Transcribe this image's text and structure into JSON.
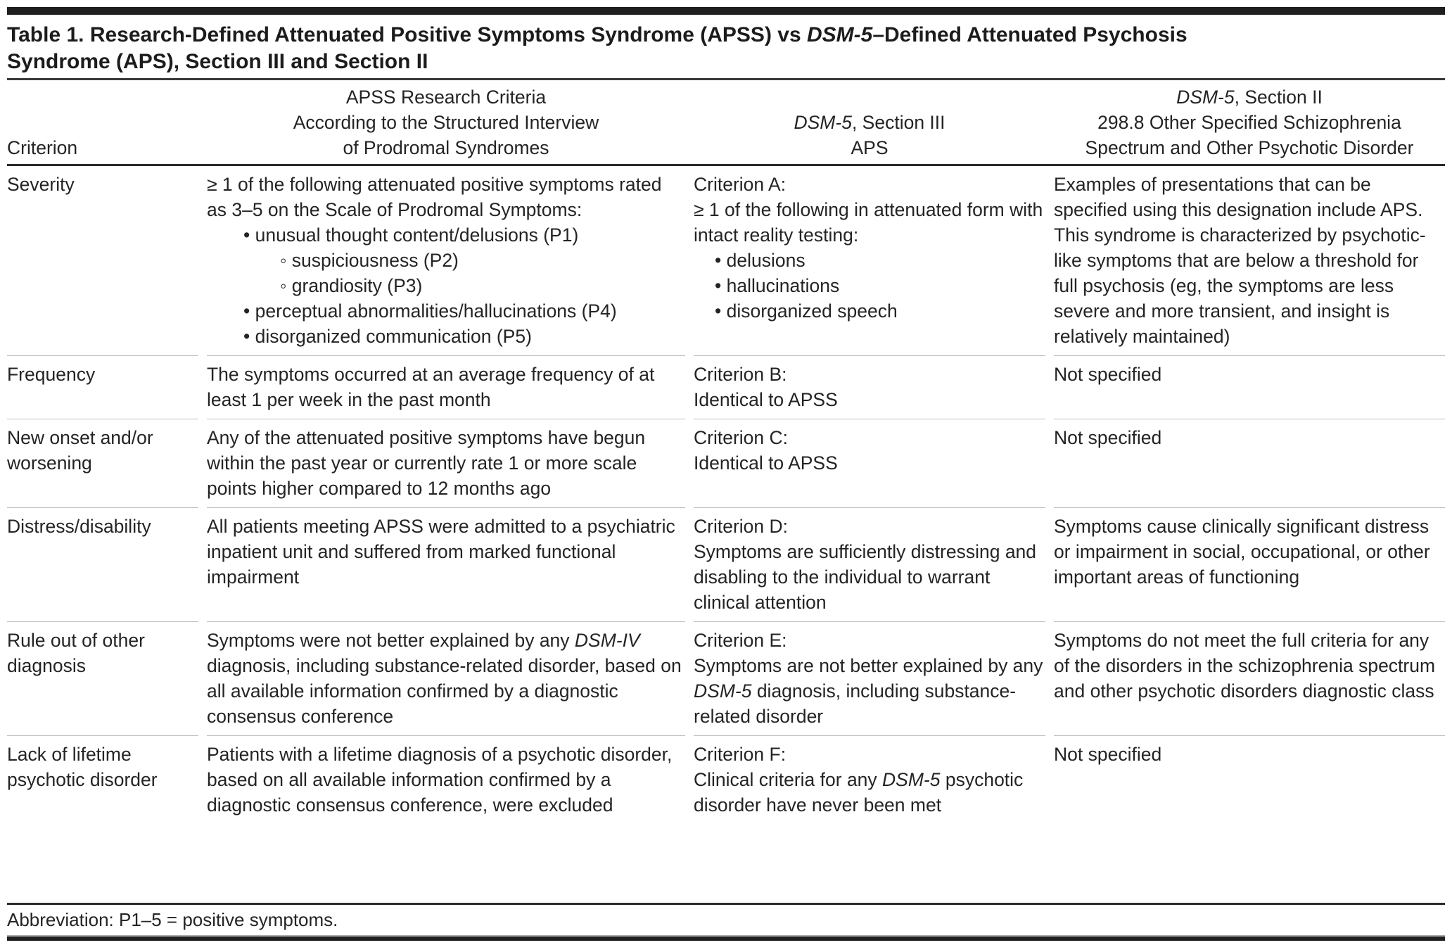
{
  "table": {
    "title": {
      "line1_a": "Table 1. Research-Defined Attenuated Positive Symptoms Syndrome (APSS) vs ",
      "line1_italic": "DSM-5",
      "line1_b": "–Defined Attenuated Psychosis",
      "line2": "Syndrome (APS), Section III and Section II"
    },
    "header": {
      "criterion": "Criterion",
      "apss_lines": [
        "APSS Research Criteria",
        "According to the Structured Interview",
        "of Prodromal Syndromes"
      ],
      "dsm3": {
        "italic": "DSM-5",
        "rest": ", Section III",
        "line2": "APS"
      },
      "dsm2": {
        "italic": "DSM-5",
        "rest": ", Section II",
        "line2": "298.8 Other Specified Schizophrenia",
        "line3": "Spectrum and Other Psychotic Disorder"
      }
    },
    "rows": [
      {
        "criterion": "Severity",
        "apss_intro": "≥ 1 of the following attenuated positive symptoms rated as 3–5 on the Scale of Prodromal Symptoms:",
        "apss_bullets": [
          "• unusual thought content/delusions (P1)",
          "◦ suspiciousness (P2)",
          "◦ grandiosity (P3)",
          "• perceptual abnormalities/hallucinations (P4)",
          "• disorganized communication (P5)"
        ],
        "dsm3_label": "Criterion A:",
        "dsm3_intro": "≥ 1 of the following in attenuated form with intact reality testing:",
        "dsm3_bullets": [
          "• delusions",
          "• hallucinations",
          "• disorganized speech"
        ],
        "dsm2": "Examples of presentations that can be specified using this designation include APS. This syndrome is characterized by psychotic-like symptoms that are below a threshold for full psychosis (eg, the symptoms are less severe and more transient, and insight is relatively maintained)"
      },
      {
        "criterion": "Frequency",
        "apss": "The symptoms occurred at an average frequency of at least 1 per week in the past month",
        "dsm3_label": "Criterion B:",
        "dsm3_body": "Identical to APSS",
        "dsm2": "Not specified"
      },
      {
        "criterion": "New onset and/or worsening",
        "apss": "Any of the attenuated positive symptoms have begun within the past year or currently rate 1 or more scale points higher compared to 12 months ago",
        "dsm3_label": "Criterion C:",
        "dsm3_body": "Identical to APSS",
        "dsm2": "Not specified"
      },
      {
        "criterion": "Distress/disability",
        "apss": "All patients meeting APSS were admitted to a psychiatric inpatient unit and suffered from marked functional impairment",
        "dsm3_label": "Criterion D:",
        "dsm3_body": "Symptoms are sufficiently distressing and disabling to the individual to warrant clinical attention",
        "dsm2": "Symptoms cause clinically significant distress or impairment in social, occupational, or other important areas of functioning"
      },
      {
        "criterion": "Rule out of other diagnosis",
        "apss_seg_a": "Symptoms were not better explained by any ",
        "apss_seg_italic": "DSM-IV",
        "apss_seg_b": " diagnosis, including substance-related disorder, based on all available information confirmed by a diagnostic consensus conference",
        "dsm3_label": "Criterion E:",
        "dsm3_seg_a": "Symptoms are not better explained by any ",
        "dsm3_seg_italic": "DSM-5",
        "dsm3_seg_b": " diagnosis, including substance-related disorder",
        "dsm2": "Symptoms do not meet the full criteria for any of the disorders in the schizophrenia spectrum and other psychotic disorders diagnostic class"
      },
      {
        "criterion": "Lack of lifetime psychotic disorder",
        "apss": "Patients with a lifetime diagnosis of a psychotic disorder, based on all available information confirmed by a diagnostic consensus conference, were excluded",
        "dsm3_label": "Criterion F:",
        "dsm3_seg_a": "Clinical criteria for any ",
        "dsm3_seg_italic": "DSM-5",
        "dsm3_seg_b": " psychotic disorder have never been met",
        "dsm2": "Not specified"
      }
    ],
    "footer": "Abbreviation: P1–5 = positive symptoms."
  }
}
